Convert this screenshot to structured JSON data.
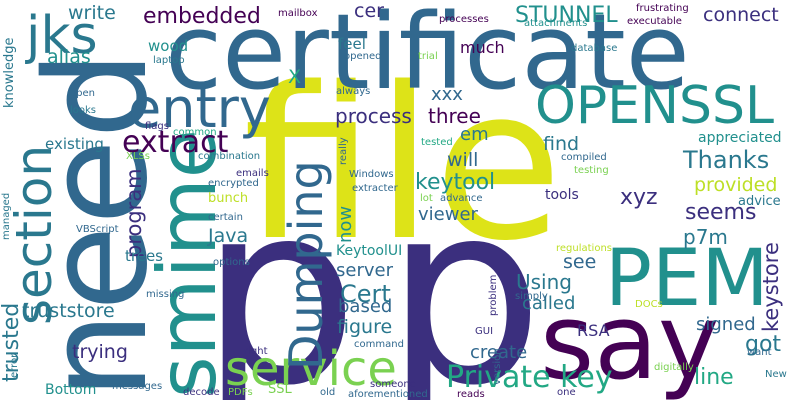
{
  "palette": {
    "dark_purple": "#440154",
    "indigo": "#3b2f7e",
    "blue": "#31688e",
    "steel": "#2a788e",
    "teal": "#21908d",
    "green_teal": "#22a884",
    "green": "#43bf71",
    "light_green": "#7ad151",
    "lime": "#bddf26",
    "yellow": "#dde318"
  },
  "words": [
    "file",
    "p",
    "need",
    "certificate",
    "say",
    "PEM",
    "smime",
    "OPENSSL",
    "entry",
    "section",
    "jks",
    "service",
    "Dumping",
    "Private key",
    "extract",
    "Thanks",
    "keytool",
    "embedded",
    "STUNNEL",
    "connect",
    "process",
    "three",
    "program",
    "seems",
    "p7m",
    "keystore",
    "provided",
    "trying",
    "truststore",
    "Cert",
    "Using",
    "figure",
    "got",
    "signed",
    "line",
    "called",
    "create",
    "based",
    "server",
    "see",
    "find",
    "will",
    "viewer",
    "xyz",
    "Java",
    "now",
    "write",
    "alias",
    "cer",
    "feel",
    "much",
    "xxx",
    "em",
    "wood",
    "X",
    "KeytoolUI",
    "trusted",
    "Bottom",
    "existing",
    "bunch",
    "trees",
    "SSL",
    "appreciated",
    "tools",
    "advice",
    "knowledge",
    "regulations",
    "RSA",
    "mailbox",
    "processes",
    "frustrating",
    "attachments",
    "executable",
    "database",
    "laptop",
    "opened",
    "trial",
    "always",
    "open",
    "looks",
    "flags",
    "common",
    "combination",
    "XLSs",
    "tested",
    "compiled",
    "testing",
    "Windows",
    "emails",
    "encrypted",
    "extracter",
    "certain",
    "VBScript",
    "options",
    "missing",
    "managed",
    "error",
    "messages",
    "decode",
    "PDFs",
    "old",
    "someone",
    "aforementioned",
    "reads",
    "one",
    "right",
    "command",
    "digitally",
    "want",
    "New",
    "DOCs",
    "GUI",
    "version",
    "problem",
    "simply",
    "really",
    "lot",
    "advance"
  ]
}
